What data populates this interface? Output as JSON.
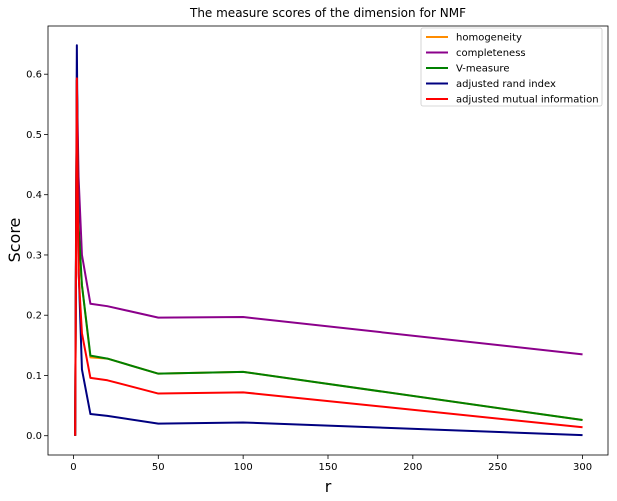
{
  "chart_data": {
    "type": "line",
    "title": "The measure scores of the dimension for NMF",
    "xlabel": "r",
    "ylabel": "Score",
    "xlim": [
      -15,
      315
    ],
    "ylim": [
      -0.032,
      0.68
    ],
    "xticks": [
      0,
      50,
      100,
      150,
      200,
      250,
      300
    ],
    "yticks": [
      0.0,
      0.1,
      0.2,
      0.3,
      0.4,
      0.5,
      0.6
    ],
    "ytick_labels": [
      "0.0",
      "0.1",
      "0.2",
      "0.3",
      "0.4",
      "0.5",
      "0.6"
    ],
    "legend_position": "top-right",
    "grid": false,
    "x": [
      1,
      2,
      3,
      5,
      10,
      20,
      50,
      100,
      300
    ],
    "series": [
      {
        "name": "homogeneity",
        "color": "#ff8c00",
        "values": [
          0.0,
          0.59,
          0.31,
          0.25,
          0.13,
          0.128,
          0.103,
          0.106,
          0.026
        ]
      },
      {
        "name": "completeness",
        "color": "#8b008b",
        "values": [
          0.0,
          0.59,
          0.43,
          0.3,
          0.219,
          0.215,
          0.196,
          0.197,
          0.135
        ]
      },
      {
        "name": "V-measure",
        "color": "#008000",
        "values": [
          0.0,
          0.59,
          0.35,
          0.25,
          0.133,
          0.128,
          0.103,
          0.106,
          0.026
        ]
      },
      {
        "name": "adjusted rand index",
        "color": "#000080",
        "values": [
          0.0,
          0.648,
          0.28,
          0.11,
          0.036,
          0.033,
          0.02,
          0.022,
          0.001
        ]
      },
      {
        "name": "adjusted mutual information",
        "color": "#ff0000",
        "values": [
          0.0,
          0.593,
          0.27,
          0.17,
          0.096,
          0.092,
          0.07,
          0.072,
          0.014
        ]
      }
    ]
  }
}
